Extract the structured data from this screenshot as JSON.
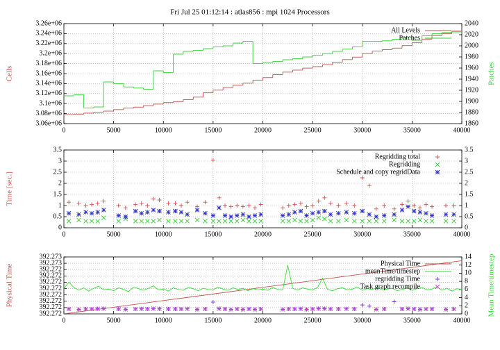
{
  "chart_data": [
    {
      "type": "line",
      "title": "Fri Jul 25 01:12:14 : atlas856 : mpi 1024 Processors",
      "step": true,
      "grid": true,
      "legend": "upper right",
      "ylabel": "Cells",
      "y2label": "Patches",
      "xlim": [
        0,
        40000
      ],
      "xticks": [
        0,
        5000,
        10000,
        15000,
        20000,
        25000,
        30000,
        35000,
        40000
      ],
      "ylim": [
        3060000,
        3260000
      ],
      "yticks": [
        {
          "value": 3060000,
          "label": "3.06e+06"
        },
        {
          "value": 3080000,
          "label": "3.08e+06"
        },
        {
          "value": 3100000,
          "label": "3.1e+06"
        },
        {
          "value": 3120000,
          "label": "3.12e+06"
        },
        {
          "value": 3140000,
          "label": "3.14e+06"
        },
        {
          "value": 3160000,
          "label": "3.16e+06"
        },
        {
          "value": 3180000,
          "label": "3.18e+06"
        },
        {
          "value": 3200000,
          "label": "3.2e+06"
        },
        {
          "value": 3220000,
          "label": "3.22e+06"
        },
        {
          "value": 3240000,
          "label": "3.24e+06"
        },
        {
          "value": 3260000,
          "label": "3.26e+06"
        }
      ],
      "y2lim": [
        1860,
        2040
      ],
      "y2ticks": [
        1860,
        1880,
        1900,
        1920,
        1940,
        1960,
        1980,
        2000,
        2020,
        2040
      ],
      "x": [
        0,
        1000,
        2000,
        3000,
        4000,
        5000,
        6000,
        7000,
        8000,
        9000,
        10000,
        11000,
        12000,
        13000,
        14000,
        15000,
        16000,
        17000,
        18000,
        19000,
        20000,
        21000,
        22000,
        23000,
        24000,
        25000,
        26000,
        27000,
        28000,
        29000,
        30000,
        31000,
        32000,
        33000,
        34000,
        35000,
        36000,
        37000,
        38000,
        39000
      ],
      "series": [
        {
          "name": "All Levels",
          "color": "#c0504a",
          "values": [
            3078000,
            3079000,
            3081000,
            3083000,
            3085000,
            3088000,
            3091000,
            3093000,
            3096000,
            3099000,
            3102000,
            3104000,
            3108000,
            3113000,
            3122000,
            3127000,
            3132000,
            3137000,
            3141000,
            3147000,
            3152000,
            3158000,
            3163000,
            3167000,
            3171000,
            3174000,
            3178000,
            3183000,
            3188000,
            3193000,
            3200000,
            3205000,
            3208000,
            3211000,
            3216000,
            3222000,
            3229000,
            3236000,
            3240000,
            3245000
          ]
        },
        {
          "name": "Patches",
          "color": "#30d030",
          "axis": "y2",
          "values": [
            1910,
            1912,
            1888,
            1890,
            1935,
            1932,
            1926,
            1924,
            1922,
            1955,
            1952,
            1985,
            1990,
            1992,
            1995,
            1998,
            2000,
            2005,
            2008,
            1968,
            1970,
            1972,
            1975,
            1977,
            1980,
            1983,
            1986,
            1990,
            1994,
            1998,
            2008,
            2008,
            2009,
            2012,
            2015,
            2010,
            2018,
            2022,
            2024,
            2025
          ]
        }
      ]
    },
    {
      "type": "scatter",
      "grid": true,
      "legend": "upper right",
      "ylabel": "Time [sec.]",
      "xlim": [
        0,
        40000
      ],
      "xticks": [
        0,
        5000,
        10000,
        15000,
        20000,
        25000,
        30000,
        35000,
        40000
      ],
      "ylim": [
        0,
        3.5
      ],
      "yticks": [
        0,
        0.5,
        1,
        1.5,
        2,
        2.5,
        3,
        3.5
      ],
      "y2lim": [
        0,
        3.5
      ],
      "y2ticks": [
        0,
        0.5,
        1,
        1.5,
        2,
        2.5,
        3,
        3.5
      ],
      "x": [
        500,
        1500,
        2200,
        2800,
        3400,
        4000,
        5500,
        6200,
        7200,
        7800,
        8400,
        9000,
        9600,
        10500,
        11200,
        11800,
        12400,
        13400,
        14200,
        15000,
        15600,
        16200,
        16800,
        17400,
        18000,
        18600,
        19200,
        19800,
        22000,
        22600,
        23200,
        23800,
        24400,
        25000,
        25600,
        26200,
        26800,
        27600,
        28400,
        29200,
        30000,
        30700,
        31400,
        32200,
        33200,
        34000,
        34600,
        35200,
        35800,
        36400,
        37000,
        38400,
        39200
      ],
      "series": [
        {
          "name": "Regridding total",
          "color": "#d05050",
          "marker": "+",
          "values": [
            1.15,
            1.1,
            1.0,
            1.05,
            1.1,
            1.2,
            1.0,
            0.9,
            1.05,
            1.1,
            1.0,
            1.3,
            1.25,
            1.1,
            1.1,
            1.0,
            1.15,
            0.95,
            1.15,
            3.05,
            1.35,
            1.0,
            0.95,
            1.0,
            0.95,
            1.0,
            0.9,
            1.05,
            0.9,
            1.0,
            1.05,
            1.1,
            0.95,
            1.0,
            1.2,
            1.35,
            1.1,
            1.0,
            1.1,
            1.0,
            2.25,
            1.9,
            0.85,
            1.0,
            0.85,
            1.05,
            1.2,
            1.0,
            0.9,
            1.05,
            0.95,
            1.0,
            1.0
          ]
        },
        {
          "name": "Regridding",
          "color": "#30d030",
          "marker": "x",
          "values": [
            0.3,
            0.35,
            0.3,
            0.3,
            0.3,
            0.45,
            0.3,
            0.4,
            0.3,
            0.3,
            0.3,
            0.3,
            0.35,
            0.3,
            0.3,
            0.3,
            0.3,
            0.35,
            0.3,
            0.3,
            0.3,
            0.3,
            0.3,
            0.3,
            0.35,
            0.3,
            0.3,
            0.3,
            0.3,
            0.3,
            0.35,
            0.3,
            0.3,
            0.35,
            0.45,
            0.4,
            0.3,
            0.3,
            0.35,
            0.3,
            0.3,
            0.3,
            0.3,
            0.3,
            0.35,
            0.3,
            0.3,
            0.3,
            0.35,
            0.3,
            0.3,
            0.3,
            0.3
          ]
        },
        {
          "name": "Schedule and copy regridData",
          "color": "#3030c8",
          "marker": "*",
          "values": [
            0.65,
            0.6,
            0.7,
            0.65,
            0.7,
            0.8,
            0.55,
            0.5,
            0.75,
            0.65,
            0.7,
            0.8,
            0.75,
            0.7,
            0.75,
            0.7,
            0.6,
            0.8,
            0.65,
            0.55,
            0.9,
            0.55,
            0.5,
            0.55,
            0.6,
            0.5,
            0.55,
            0.6,
            0.55,
            0.6,
            0.7,
            0.75,
            0.55,
            0.65,
            0.7,
            0.75,
            0.6,
            0.65,
            0.7,
            0.65,
            0.75,
            0.6,
            0.5,
            0.55,
            0.6,
            0.8,
            0.95,
            0.75,
            0.7,
            0.65,
            0.55,
            0.6,
            0.6
          ]
        }
      ]
    },
    {
      "type": "line",
      "grid": true,
      "legend": "upper right",
      "ylabel": "Physical Time",
      "y2label": "Mean Time/timestep",
      "xlim": [
        0,
        40000
      ],
      "xticks": [
        0,
        5000,
        10000,
        15000,
        20000,
        25000,
        30000,
        35000,
        40000
      ],
      "ylim": [
        392.2717,
        392.2726
      ],
      "yticks": [
        {
          "value": 392.2717,
          "label": "392.272"
        },
        {
          "value": 392.2718,
          "label": "392.272"
        },
        {
          "value": 392.2719,
          "label": "392.272"
        },
        {
          "value": 392.272,
          "label": "392.272"
        },
        {
          "value": 392.2721,
          "label": "392.272"
        },
        {
          "value": 392.2722,
          "label": "392.272"
        },
        {
          "value": 392.2723,
          "label": "392.272"
        },
        {
          "value": 392.2724,
          "label": "392.272"
        },
        {
          "value": 392.2725,
          "label": "392.273"
        },
        {
          "value": 392.2726,
          "label": "392.273"
        }
      ],
      "y2lim": [
        0,
        14
      ],
      "y2ticks": [
        0,
        2,
        4,
        6,
        8,
        10,
        12,
        14
      ],
      "series": [
        {
          "name": "Physical Time",
          "color": "#c0504a",
          "x": [
            0,
            40000
          ],
          "values": [
            392.2717,
            392.27254
          ]
        },
        {
          "name": "meanTime/timestep",
          "color": "#30e030",
          "axis": "y2",
          "x": [
            0,
            500,
            1000,
            1500,
            2000,
            2500,
            3000,
            3500,
            4000,
            4500,
            5000,
            5500,
            6000,
            6500,
            7000,
            7500,
            8000,
            8500,
            9000,
            9500,
            10000,
            10500,
            11000,
            11500,
            12000,
            12500,
            13000,
            13500,
            14000,
            14500,
            15000,
            15500,
            16000,
            16500,
            17000,
            17500,
            18000,
            18500,
            19000,
            19500,
            20000,
            20500,
            21000,
            21500,
            22000,
            22500,
            23000,
            23500,
            24000,
            24500,
            25000,
            25500,
            26000,
            26500,
            27000,
            27500,
            28000,
            28500,
            29000,
            29500,
            30000,
            30500,
            31000,
            31500,
            32000,
            32500,
            33000,
            33500,
            34000,
            34500,
            35000,
            35500,
            36000,
            36500,
            37000,
            37500,
            38000,
            38500,
            39000,
            39500,
            40000
          ],
          "values": [
            6.2,
            7.8,
            6.5,
            5.8,
            6.4,
            5.6,
            6.3,
            6.8,
            5.9,
            6.1,
            5.7,
            6.4,
            6.0,
            5.5,
            6.6,
            6.2,
            5.8,
            6.3,
            6.9,
            5.9,
            6.1,
            5.6,
            6.4,
            6.0,
            5.8,
            6.5,
            6.2,
            5.7,
            6.3,
            6.0,
            5.9,
            6.6,
            6.1,
            5.8,
            6.4,
            6.0,
            6.3,
            5.7,
            6.2,
            5.9,
            6.1,
            5.8,
            6.5,
            6.0,
            5.9,
            12.0,
            6.3,
            5.8,
            6.4,
            6.1,
            5.9,
            6.5,
            8.8,
            6.0,
            5.7,
            6.2,
            6.4,
            5.9,
            6.1,
            6.6,
            5.8,
            6.2,
            6.0,
            6.5,
            5.9,
            6.1,
            6.3,
            5.7,
            6.0,
            6.4,
            5.8,
            6.2,
            6.5,
            5.9,
            6.1,
            6.7,
            5.8,
            6.3,
            5.6,
            6.2,
            6.0
          ]
        },
        {
          "name": "regridding Time",
          "color": "#7030d0",
          "axis": "y2",
          "marker": "+",
          "x": [
            500,
            1500,
            2200,
            2800,
            3400,
            4000,
            5500,
            6200,
            7200,
            7800,
            8400,
            9000,
            9600,
            10500,
            11200,
            11800,
            12400,
            13400,
            14200,
            15000,
            15600,
            16200,
            16800,
            17400,
            18000,
            18600,
            19200,
            19800,
            22000,
            22600,
            23200,
            23800,
            24400,
            25000,
            25600,
            26200,
            26800,
            27600,
            28400,
            29200,
            30000,
            30700,
            31400,
            32200,
            33200,
            34000,
            34600,
            35200,
            35800,
            36400,
            37000,
            38400,
            39200
          ],
          "values": [
            1.2,
            1.1,
            1.2,
            1.2,
            1.25,
            1.3,
            1.2,
            1.1,
            1.2,
            1.25,
            1.2,
            1.3,
            1.25,
            1.2,
            1.2,
            1.2,
            1.25,
            1.1,
            1.2,
            2.9,
            1.3,
            1.2,
            1.1,
            1.2,
            1.1,
            1.2,
            1.1,
            1.2,
            1.1,
            1.2,
            1.2,
            1.25,
            1.1,
            1.2,
            1.3,
            1.3,
            1.2,
            1.2,
            1.25,
            1.2,
            2.2,
            1.9,
            1.1,
            1.2,
            3.0,
            1.2,
            1.3,
            1.2,
            1.1,
            1.2,
            1.2,
            1.1,
            1.2
          ]
        },
        {
          "name": "Task graph recompile",
          "color": "#d040d0",
          "axis": "y2",
          "marker": "x",
          "x": [
            500,
            1500,
            2200,
            2800,
            3400,
            4000,
            5500,
            6200,
            7200,
            7800,
            8400,
            9000,
            9600,
            10500,
            11200,
            11800,
            12400,
            13400,
            14200,
            15600,
            16200,
            16800,
            17400,
            18000,
            18600,
            19200,
            19800,
            22000,
            22600,
            23200,
            23800,
            24400,
            25000,
            25600,
            26200,
            26800,
            27600,
            28400,
            29200,
            31400,
            32200,
            34000,
            34600,
            35200,
            35800,
            36400,
            37000,
            38400,
            39200
          ],
          "values": [
            1.2,
            1.1,
            1.2,
            1.2,
            1.25,
            1.3,
            1.2,
            1.1,
            1.2,
            1.25,
            1.2,
            1.3,
            1.25,
            1.2,
            1.2,
            1.2,
            1.25,
            1.1,
            1.2,
            1.3,
            1.2,
            1.1,
            1.2,
            1.1,
            1.2,
            1.1,
            1.2,
            1.1,
            1.2,
            1.2,
            1.25,
            1.1,
            1.2,
            1.3,
            1.3,
            1.2,
            1.2,
            1.25,
            1.2,
            1.1,
            1.2,
            1.2,
            1.3,
            1.2,
            1.1,
            1.2,
            1.2,
            1.1,
            1.2
          ]
        }
      ]
    }
  ]
}
